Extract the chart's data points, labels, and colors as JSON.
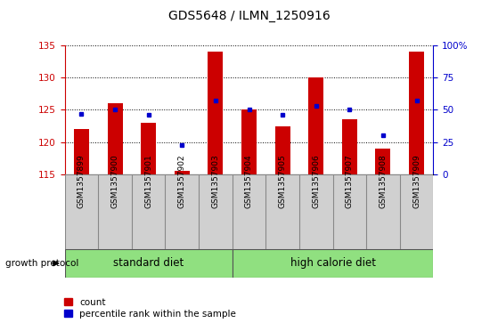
{
  "title": "GDS5648 / ILMN_1250916",
  "samples": [
    "GSM1357899",
    "GSM1357900",
    "GSM1357901",
    "GSM1357902",
    "GSM1357903",
    "GSM1357904",
    "GSM1357905",
    "GSM1357906",
    "GSM1357907",
    "GSM1357908",
    "GSM1357909"
  ],
  "counts": [
    122.0,
    126.0,
    123.0,
    115.5,
    134.0,
    125.0,
    122.5,
    130.0,
    123.5,
    119.0,
    134.0
  ],
  "percentile_ranks": [
    47,
    50,
    46,
    23,
    57,
    50,
    46,
    53,
    50,
    30,
    57
  ],
  "ylim_left": [
    115,
    135
  ],
  "ylim_right": [
    0,
    100
  ],
  "yticks_left": [
    115,
    120,
    125,
    130,
    135
  ],
  "yticks_right": [
    0,
    25,
    50,
    75,
    100
  ],
  "group1_label": "standard diet",
  "group2_label": "high calorie diet",
  "group1_indices": [
    0,
    1,
    2,
    3,
    4
  ],
  "group2_indices": [
    5,
    6,
    7,
    8,
    9,
    10
  ],
  "growth_protocol_label": "growth protocol",
  "legend_count_label": "count",
  "legend_percentile_label": "percentile rank within the sample",
  "bar_color": "#cc0000",
  "dot_color": "#0000cc",
  "group_bg_color": "#90e080",
  "sample_bg_color": "#d0d0d0",
  "left_axis_color": "#cc0000",
  "right_axis_color": "#0000cc",
  "grid_color": "#000000",
  "bar_width": 0.45,
  "bar_bottom": 115
}
